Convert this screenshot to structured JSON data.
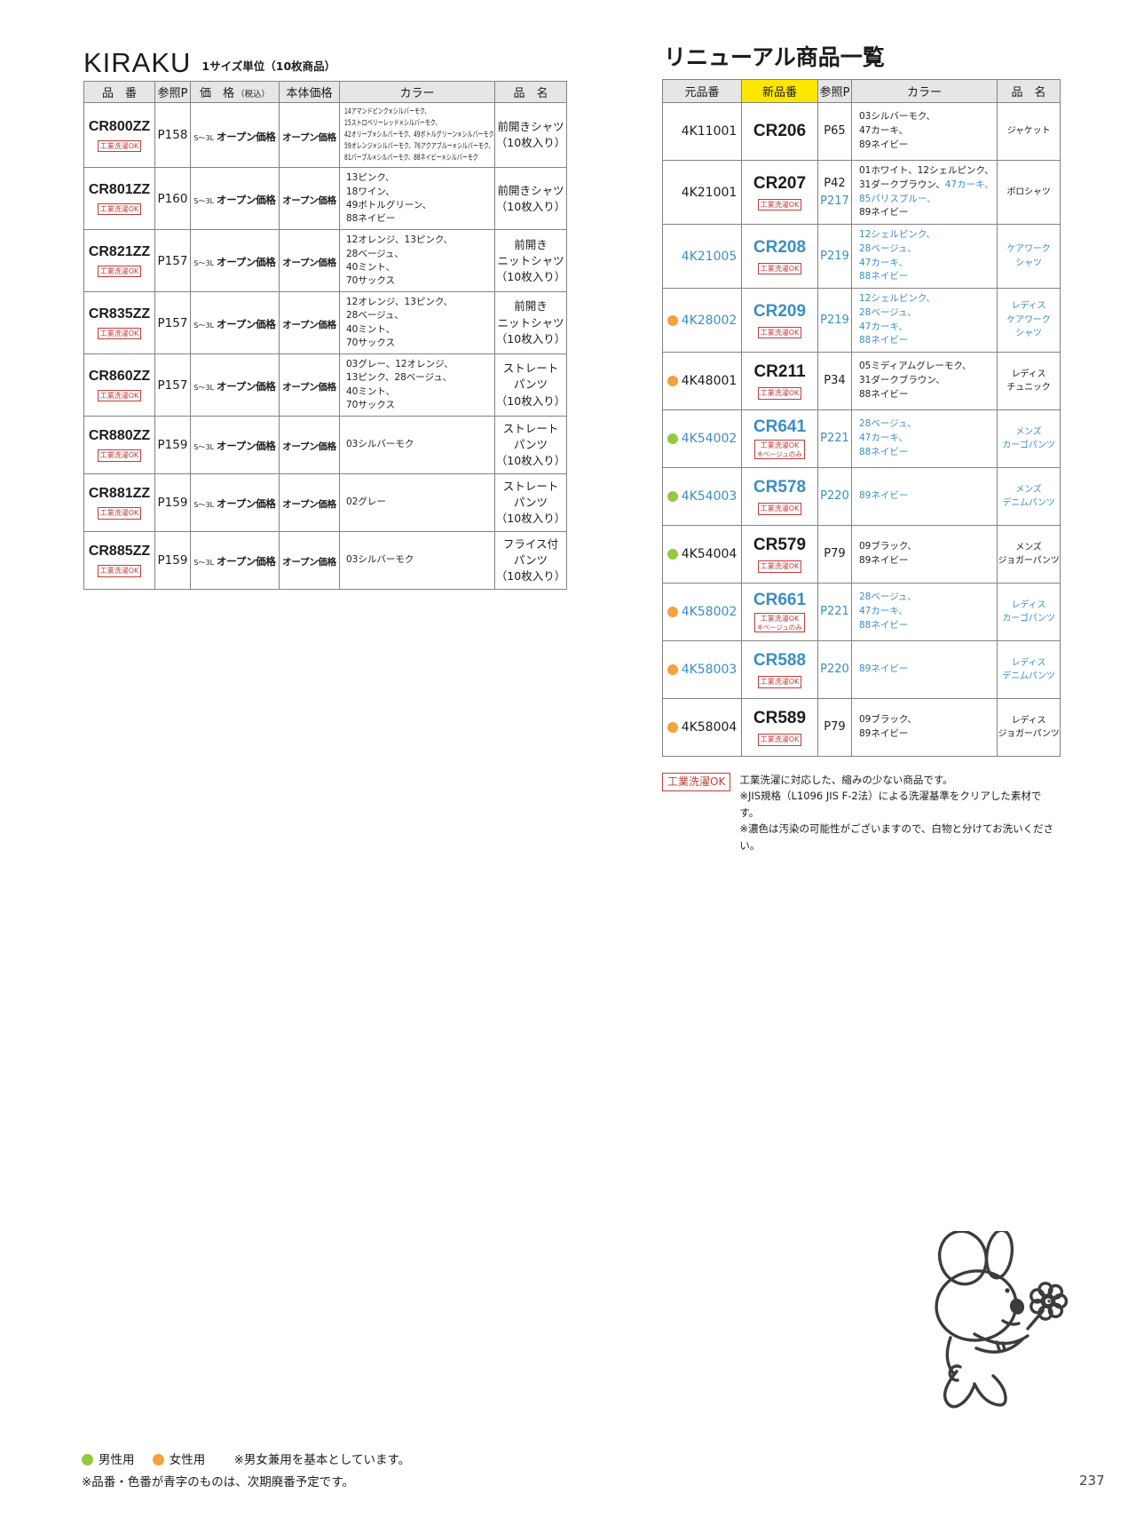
{
  "page_number": "237",
  "colors": {
    "blue": "#3b8ec2",
    "orange": "#f5a13c",
    "green": "#94c93f",
    "yellow": "#ffe600",
    "red": "#c23b3b",
    "header_bg": "#e6e6e6",
    "border": "#828282"
  },
  "kiraku": {
    "title": "KIRAKU",
    "subtitle": "1サイズ単位（10枚商品）",
    "headers": [
      "品　番",
      "参照P",
      "価　格",
      "本体価格",
      "カラー",
      "品　名"
    ],
    "tax_note": "（税込）",
    "badge": "工業洗濯OK",
    "size_label": "S～3L",
    "open_price": "オープン価格",
    "rows": [
      {
        "code": "CR800ZZ",
        "ref": "P158",
        "tall": true,
        "color_small": true,
        "color_lines": [
          "14アマンドピンク×シルバーモク、",
          "15ストロベリーレッド×シルバーモク、",
          "42オリーブ×シルバーモク、49ボトルグリーン×シルバーモク、",
          "59オレンジ×シルバーモク、76アクアブルー×シルバーモク、",
          "81パープル×シルバーモク、88ネイビー×シルバーモク"
        ],
        "name_lines": [
          "前開きシャツ",
          "（10枚入り）"
        ]
      },
      {
        "code": "CR801ZZ",
        "ref": "P160",
        "color_lines": [
          "13ピンク、",
          "18ワイン、",
          "49ボトルグリーン、",
          "88ネイビー"
        ],
        "name_lines": [
          "前開きシャツ",
          "（10枚入り）"
        ]
      },
      {
        "code": "CR821ZZ",
        "ref": "P157",
        "color_lines": [
          "12オレンジ、13ピンク、",
          "28ベージュ、",
          "40ミント、",
          "70サックス"
        ],
        "name_lines": [
          "前開き",
          "ニットシャツ",
          "（10枚入り）"
        ]
      },
      {
        "code": "CR835ZZ",
        "ref": "P157",
        "color_lines": [
          "12オレンジ、13ピンク、",
          "28ベージュ、",
          "40ミント、",
          "70サックス"
        ],
        "name_lines": [
          "前開き",
          "ニットシャツ",
          "（10枚入り）"
        ]
      },
      {
        "code": "CR860ZZ",
        "ref": "P157",
        "color_lines": [
          "03グレー、12オレンジ、",
          "13ピンク、28ベージュ、",
          "40ミント、",
          "70サックス"
        ],
        "name_lines": [
          "ストレート",
          "パンツ",
          "（10枚入り）"
        ]
      },
      {
        "code": "CR880ZZ",
        "ref": "P159",
        "color_lines": [
          "03シルバーモク"
        ],
        "name_lines": [
          "ストレート",
          "パンツ",
          "（10枚入り）"
        ]
      },
      {
        "code": "CR881ZZ",
        "ref": "P159",
        "color_lines": [
          "02グレー"
        ],
        "name_lines": [
          "ストレート",
          "パンツ",
          "（10枚入り）"
        ]
      },
      {
        "code": "CR885ZZ",
        "ref": "P159",
        "color_lines": [
          "03シルバーモク"
        ],
        "name_lines": [
          "フライス付",
          "パンツ",
          "（10枚入り）"
        ]
      }
    ]
  },
  "renewal": {
    "title": "リニューアル商品一覧",
    "headers": [
      "元品番",
      "新品番",
      "参照P",
      "カラー",
      "品　名"
    ],
    "badge": "工業洗濯OK",
    "badge_note": "※ベージュのみ",
    "rows": [
      {
        "dot": null,
        "old": [
          "4K11001",
          0
        ],
        "new": [
          "CR206",
          0
        ],
        "badge": 0,
        "note": 0,
        "refs": [
          [
            "P65",
            0
          ]
        ],
        "colors": [
          [
            [
              "03シルバーモク、",
              0
            ]
          ],
          [
            [
              "47カーキ、",
              0
            ]
          ],
          [
            [
              "89ネイビー",
              0
            ]
          ]
        ],
        "names": [
          [
            "ジャケット",
            0
          ]
        ]
      },
      {
        "dot": null,
        "old": [
          "4K21001",
          0
        ],
        "new": [
          "CR207",
          0
        ],
        "badge": 1,
        "note": 0,
        "refs": [
          [
            "P42",
            0
          ],
          [
            "P217",
            1
          ]
        ],
        "colors": [
          [
            [
              "01ホワイト、12シェルピンク、",
              0
            ]
          ],
          [
            [
              "31ダークブラウン、",
              0
            ],
            [
              "47カーキ、",
              1
            ]
          ],
          [
            [
              "85パリスブルー、",
              1
            ]
          ],
          [
            [
              "89ネイビー",
              0
            ]
          ]
        ],
        "names": [
          [
            "ポロシャツ",
            0
          ]
        ]
      },
      {
        "dot": null,
        "old": [
          "4K21005",
          1
        ],
        "new": [
          "CR208",
          1
        ],
        "badge": 1,
        "note": 0,
        "refs": [
          [
            "P219",
            1
          ]
        ],
        "colors": [
          [
            [
              "12シェルピンク、",
              1
            ]
          ],
          [
            [
              "28ベージュ、",
              1
            ]
          ],
          [
            [
              "47カーキ、",
              1
            ]
          ],
          [
            [
              "88ネイビー",
              1
            ]
          ]
        ],
        "names": [
          [
            "ケアワーク",
            1
          ],
          [
            "シャツ",
            1
          ]
        ]
      },
      {
        "dot": "orange",
        "old": [
          "4K28002",
          1
        ],
        "new": [
          "CR209",
          1
        ],
        "badge": 1,
        "note": 0,
        "refs": [
          [
            "P219",
            1
          ]
        ],
        "colors": [
          [
            [
              "12シェルピンク、",
              1
            ]
          ],
          [
            [
              "28ベージュ、",
              1
            ]
          ],
          [
            [
              "47カーキ、",
              1
            ]
          ],
          [
            [
              "88ネイビー",
              1
            ]
          ]
        ],
        "names": [
          [
            "レディス",
            1
          ],
          [
            "ケアワーク",
            1
          ],
          [
            "シャツ",
            1
          ]
        ]
      },
      {
        "dot": "orange",
        "old": [
          "4K48001",
          0
        ],
        "new": [
          "CR211",
          0
        ],
        "badge": 1,
        "note": 0,
        "refs": [
          [
            "P34",
            0
          ]
        ],
        "colors": [
          [
            [
              "05ミディアムグレーモク、",
              0
            ]
          ],
          [
            [
              "31ダークブラウン、",
              0
            ]
          ],
          [
            [
              "88ネイビー",
              0
            ]
          ]
        ],
        "names": [
          [
            "レディス",
            0
          ],
          [
            "チュニック",
            0
          ]
        ]
      },
      {
        "dot": "green",
        "old": [
          "4K54002",
          1
        ],
        "new": [
          "CR641",
          1
        ],
        "badge": 1,
        "note": 1,
        "refs": [
          [
            "P221",
            1
          ]
        ],
        "colors": [
          [
            [
              "28ベージュ、",
              1
            ]
          ],
          [
            [
              "47カーキ、",
              1
            ]
          ],
          [
            [
              "88ネイビー",
              1
            ]
          ]
        ],
        "names": [
          [
            "メンズ",
            1
          ],
          [
            "カーゴパンツ",
            1
          ]
        ]
      },
      {
        "dot": "green",
        "old": [
          "4K54003",
          1
        ],
        "new": [
          "CR578",
          1
        ],
        "badge": 1,
        "note": 0,
        "refs": [
          [
            "P220",
            1
          ]
        ],
        "colors": [
          [
            [
              "89ネイビー",
              1
            ]
          ]
        ],
        "names": [
          [
            "メンズ",
            1
          ],
          [
            "デニムパンツ",
            1
          ]
        ]
      },
      {
        "dot": "green",
        "old": [
          "4K54004",
          0
        ],
        "new": [
          "CR579",
          0
        ],
        "badge": 1,
        "note": 0,
        "refs": [
          [
            "P79",
            0
          ]
        ],
        "colors": [
          [
            [
              "09ブラック、",
              0
            ]
          ],
          [
            [
              "89ネイビー",
              0
            ]
          ]
        ],
        "names": [
          [
            "メンズ",
            0
          ],
          [
            "ジョガーパンツ",
            0
          ]
        ]
      },
      {
        "dot": "orange",
        "old": [
          "4K58002",
          1
        ],
        "new": [
          "CR661",
          1
        ],
        "badge": 1,
        "note": 1,
        "refs": [
          [
            "P221",
            1
          ]
        ],
        "colors": [
          [
            [
              "28ベージュ、",
              1
            ]
          ],
          [
            [
              "47カーキ、",
              1
            ]
          ],
          [
            [
              "88ネイビー",
              1
            ]
          ]
        ],
        "names": [
          [
            "レディス",
            1
          ],
          [
            "カーゴパンツ",
            1
          ]
        ]
      },
      {
        "dot": "orange",
        "old": [
          "4K58003",
          1
        ],
        "new": [
          "CR588",
          1
        ],
        "badge": 1,
        "note": 0,
        "refs": [
          [
            "P220",
            1
          ]
        ],
        "colors": [
          [
            [
              "89ネイビー",
              1
            ]
          ]
        ],
        "names": [
          [
            "レディス",
            1
          ],
          [
            "デニムパンツ",
            1
          ]
        ]
      },
      {
        "dot": "orange",
        "old": [
          "4K58004",
          0
        ],
        "new": [
          "CR589",
          0
        ],
        "badge": 1,
        "note": 0,
        "refs": [
          [
            "P79",
            0
          ]
        ],
        "colors": [
          [
            [
              "09ブラック、",
              0
            ]
          ],
          [
            [
              "89ネイビー",
              0
            ]
          ]
        ],
        "names": [
          [
            "レディス",
            0
          ],
          [
            "ジョガーパンツ",
            0
          ]
        ]
      }
    ],
    "note_badge": "工業洗濯OK",
    "notes": [
      "工業洗濯に対応した、縮みの少ない商品です。",
      "※JIS規格（L1096 JIS F-2法）による洗濯基準をクリアした素材です。",
      "※濃色は汚染の可能性がございますので、白物と分けてお洗いください。"
    ]
  },
  "legend": {
    "male_label": "男性用",
    "female_label": "女性用",
    "note": "※男女兼用を基本としています。",
    "note2": "※品番・色番が青字のものは、次期廃番予定です。"
  }
}
